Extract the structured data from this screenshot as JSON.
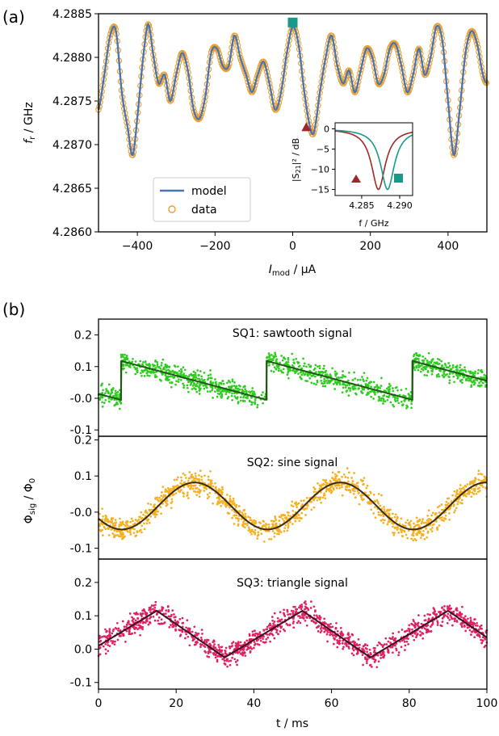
{
  "chart_data": [
    {
      "panel": "(a)",
      "type": "line",
      "xlabel": "I",
      "xlabel_sub": "mod",
      "xlabel_unit": " / μA",
      "ylabel": "f",
      "ylabel_sub": "r",
      "ylabel_unit": " / GHz",
      "xlim": [
        -500,
        500
      ],
      "ylim": [
        4.286,
        4.2885
      ],
      "xticks": [
        "−400",
        "−200",
        "0",
        "200",
        "400"
      ],
      "yticks": [
        "4.2860",
        "4.2865",
        "4.2870",
        "4.2875",
        "4.2880",
        "4.2885"
      ],
      "legend": [
        "model",
        "data"
      ],
      "legend_position": "lower-left",
      "series": [
        {
          "name": "model",
          "color": "#4c72b0",
          "marker": "line"
        },
        {
          "name": "data",
          "color": "#e8a02c",
          "marker": "circle"
        }
      ],
      "points": [
        [
          -500,
          4.2874
        ],
        [
          -485,
          4.2878
        ],
        [
          -470,
          4.28825
        ],
        [
          -455,
          4.2883
        ],
        [
          -440,
          4.2876
        ],
        [
          -425,
          4.2872
        ],
        [
          -412,
          4.28688
        ],
        [
          -398,
          4.2874
        ],
        [
          -385,
          4.288
        ],
        [
          -372,
          4.28838
        ],
        [
          -358,
          4.288
        ],
        [
          -345,
          4.2877
        ],
        [
          -330,
          4.2878
        ],
        [
          -315,
          4.2875
        ],
        [
          -300,
          4.2878
        ],
        [
          -285,
          4.28805
        ],
        [
          -270,
          4.28785
        ],
        [
          -255,
          4.2874
        ],
        [
          -240,
          4.2873
        ],
        [
          -225,
          4.28755
        ],
        [
          -210,
          4.28805
        ],
        [
          -195,
          4.2881
        ],
        [
          -180,
          4.2879
        ],
        [
          -165,
          4.2879
        ],
        [
          -150,
          4.28825
        ],
        [
          -135,
          4.288
        ],
        [
          -120,
          4.2878
        ],
        [
          -105,
          4.2876
        ],
        [
          -90,
          4.2878
        ],
        [
          -75,
          4.28795
        ],
        [
          -60,
          4.2877
        ],
        [
          -45,
          4.2874
        ],
        [
          -30,
          4.2876
        ],
        [
          -15,
          4.28805
        ],
        [
          0,
          4.28835
        ],
        [
          15,
          4.28815
        ],
        [
          30,
          4.2876
        ],
        [
          45,
          4.2872
        ],
        [
          55,
          4.28715
        ],
        [
          70,
          4.2876
        ],
        [
          85,
          4.288
        ],
        [
          100,
          4.28825
        ],
        [
          115,
          4.2879
        ],
        [
          130,
          4.2877
        ],
        [
          145,
          4.28785
        ],
        [
          160,
          4.2876
        ],
        [
          175,
          4.28785
        ],
        [
          190,
          4.2881
        ],
        [
          205,
          4.288
        ],
        [
          220,
          4.2877
        ],
        [
          235,
          4.2878
        ],
        [
          250,
          4.2881
        ],
        [
          265,
          4.28815
        ],
        [
          280,
          4.2879
        ],
        [
          295,
          4.2876
        ],
        [
          310,
          4.2878
        ],
        [
          325,
          4.2881
        ],
        [
          340,
          4.2878
        ],
        [
          355,
          4.288
        ],
        [
          370,
          4.28835
        ],
        [
          385,
          4.2882
        ],
        [
          400,
          4.2875
        ],
        [
          415,
          4.28688
        ],
        [
          430,
          4.2874
        ],
        [
          445,
          4.28805
        ],
        [
          460,
          4.2883
        ],
        [
          475,
          4.28815
        ],
        [
          490,
          4.2878
        ],
        [
          500,
          4.2877
        ]
      ],
      "markers": [
        {
          "name": "square",
          "x": 0,
          "y": 4.2884,
          "color": "#1a9988"
        },
        {
          "name": "triangle",
          "x": 35,
          "y": 4.2872,
          "color": "#a02828"
        }
      ],
      "inset": {
        "xlabel": "f / GHz",
        "ylabel": "|S21|² / dB",
        "ylabel_main": "|S",
        "ylabel_sub": "21",
        "ylabel_rest": "|² / dB",
        "xticks": [
          "4.285",
          "4.290"
        ],
        "yticks": [
          "0",
          "−5",
          "−10",
          "−15"
        ],
        "xlim": [
          4.2815,
          4.2917
        ],
        "ylim": [
          -16.5,
          1.5
        ],
        "dips": [
          {
            "name": "triangle-curve",
            "f0": 4.2872,
            "depth": -15,
            "color": "#a02828"
          },
          {
            "name": "square-curve",
            "f0": 4.2884,
            "depth": -15,
            "color": "#1a9988"
          }
        ]
      }
    },
    {
      "panel": "(b)",
      "type": "scatter",
      "xlabel": "t / ms",
      "ylabel": "Φ",
      "ylabel_sub": "sig",
      "ylabel_rest": " / Φ",
      "ylabel_sub2": "0",
      "xlim": [
        0,
        100
      ],
      "xticks": [
        "0",
        "20",
        "40",
        "60",
        "80",
        "100"
      ],
      "subplots": [
        {
          "title": "SQ1: sawtooth signal",
          "signal": "sawtooth",
          "color": "#2ecc1f",
          "ylim": [
            -0.12,
            0.25
          ],
          "yticks": [
            "0.2",
            "0.1",
            "-0.0",
            "-0.1"
          ],
          "period_ms": 37.5,
          "amplitude": [
            0.0,
            0.115
          ]
        },
        {
          "title": "SQ2: sine signal",
          "signal": "sine",
          "color": "#f5b021",
          "ylim": [
            -0.13,
            0.21
          ],
          "yticks": [
            "0.2",
            "0.1",
            "-0.0",
            "-0.1"
          ],
          "period_ms": 37.5,
          "amplitude": [
            -0.048,
            0.082
          ]
        },
        {
          "title": "SQ3: triangle signal",
          "signal": "triangle",
          "color": "#e02060",
          "ylim": [
            -0.12,
            0.27
          ],
          "yticks": [
            "0.2",
            "0.1",
            "0.0",
            "-0.1"
          ],
          "period_ms": 37.5,
          "amplitude": [
            -0.025,
            0.115
          ]
        }
      ]
    }
  ]
}
